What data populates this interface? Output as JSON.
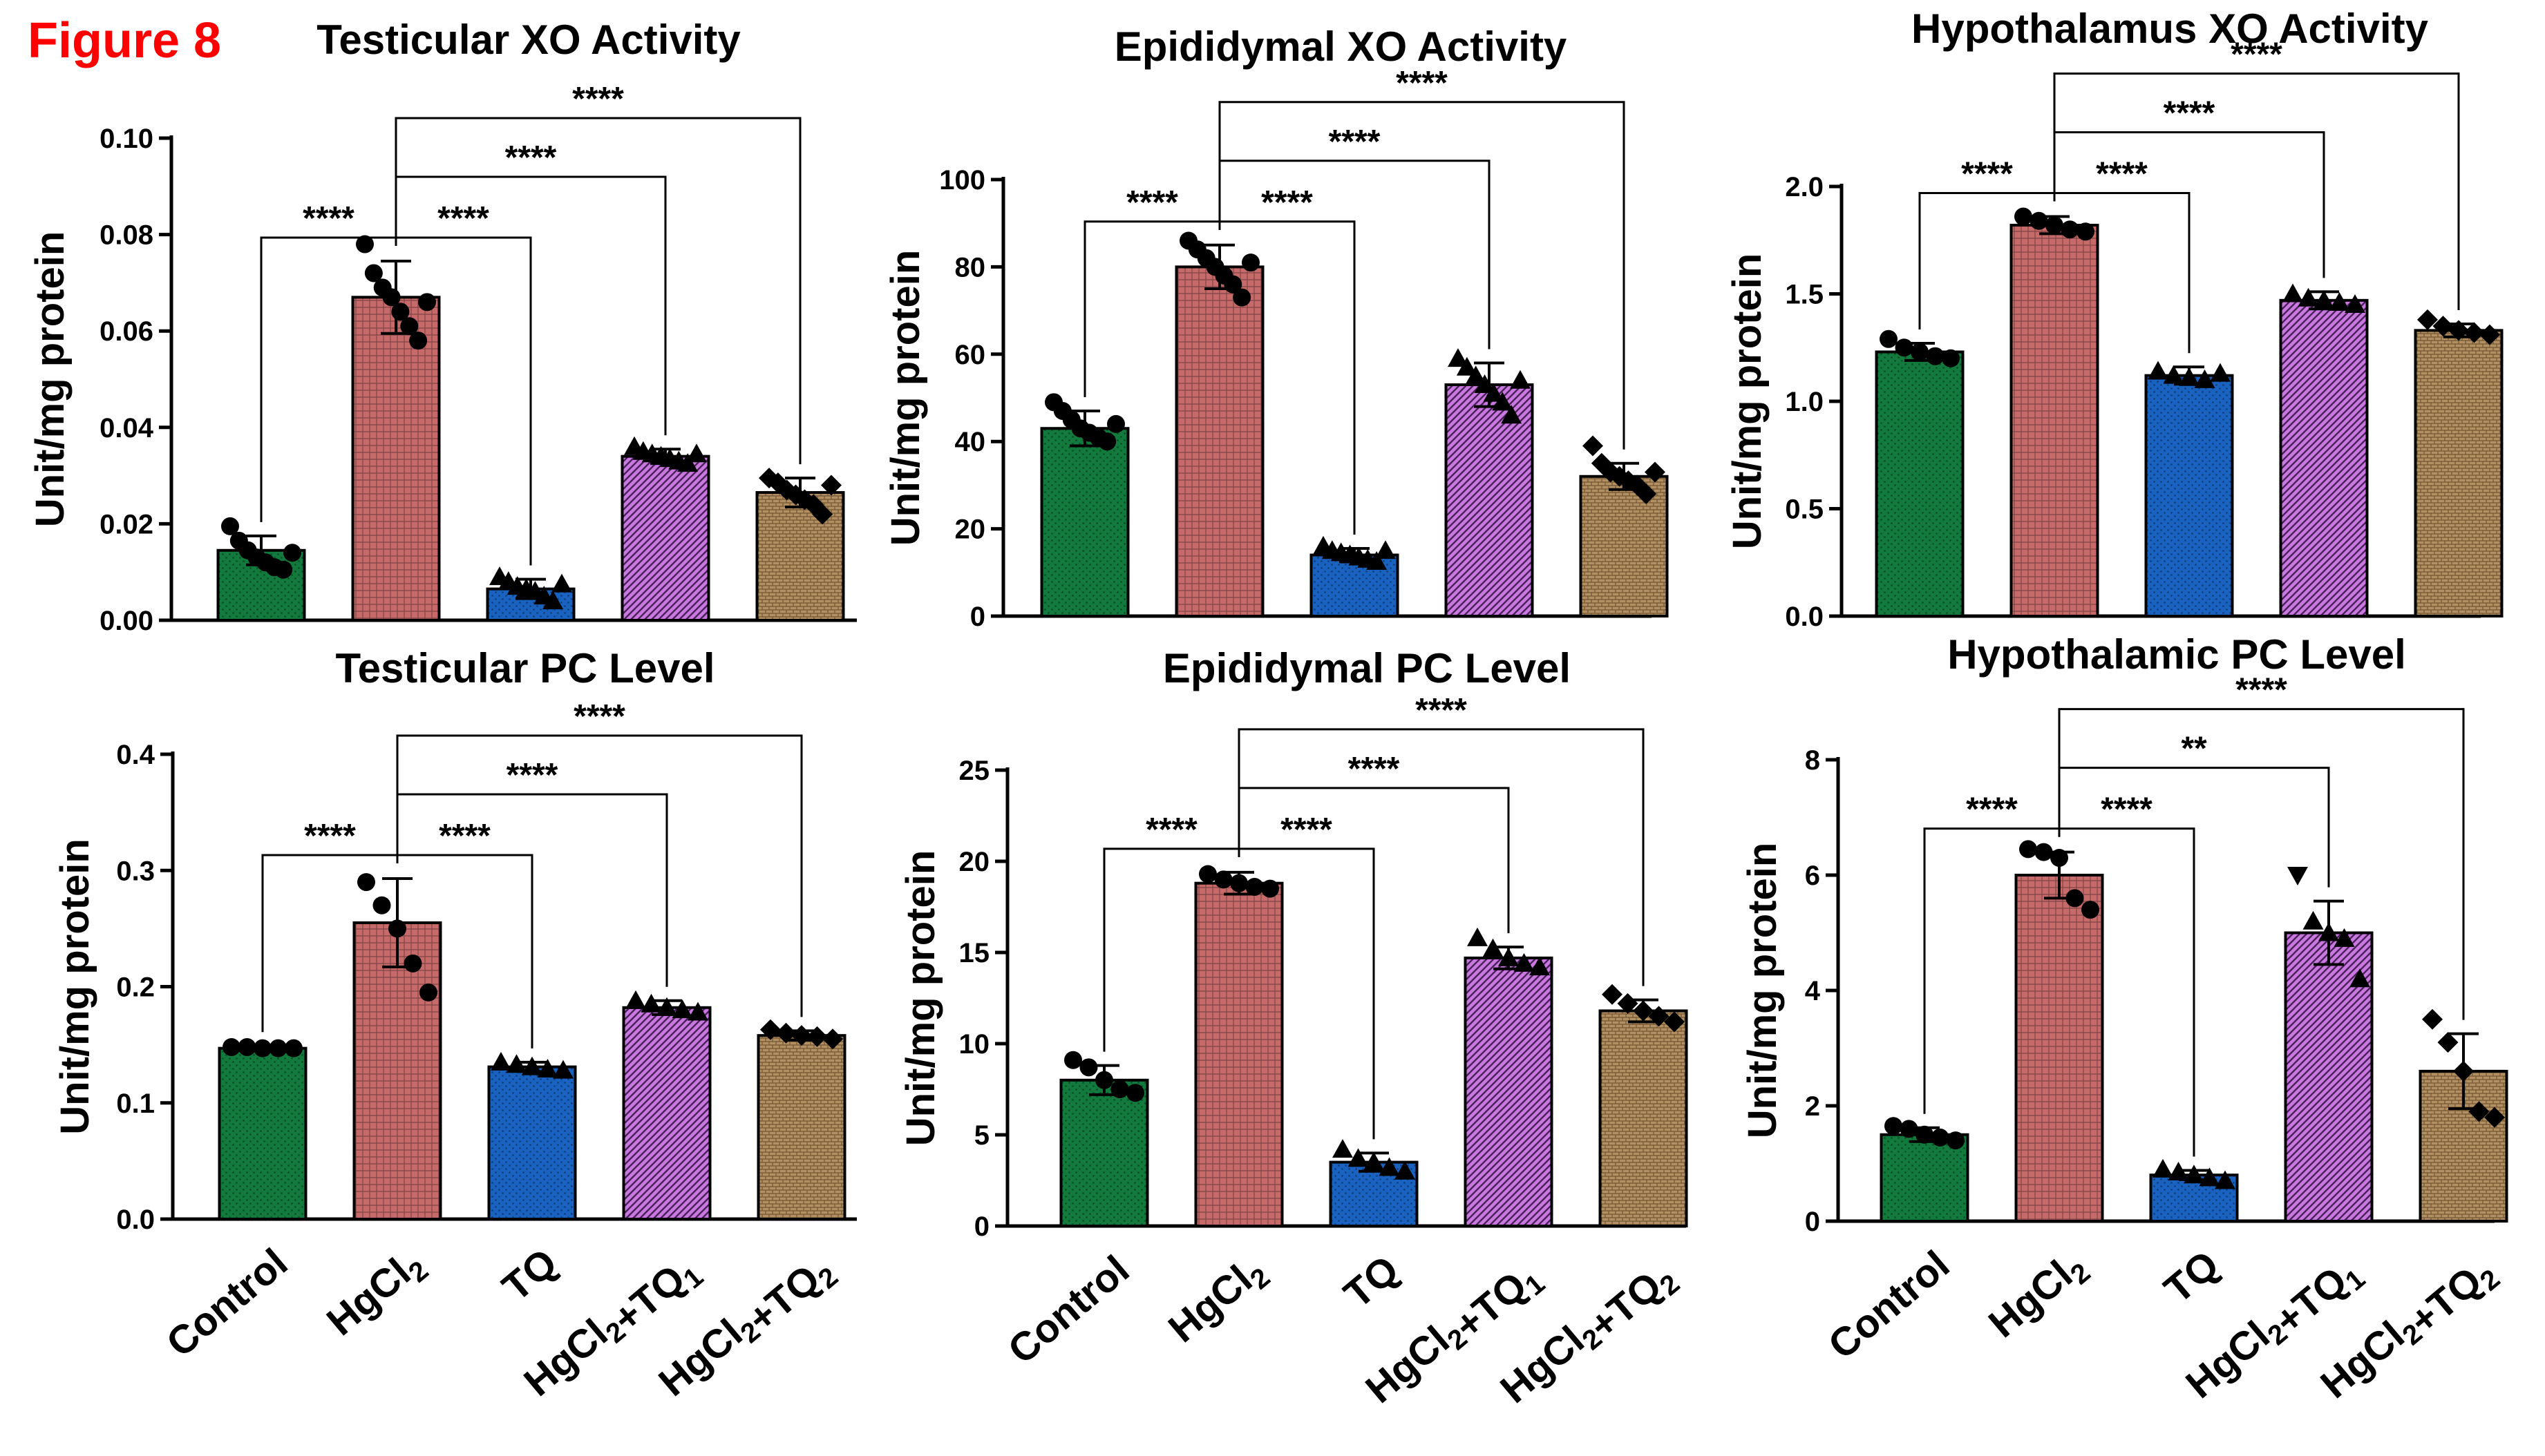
{
  "figure_label": "Figure 8",
  "groups": [
    "Control",
    "HgCl2",
    "TQ",
    "HgCl2+TQ1",
    "HgCl2+TQ2"
  ],
  "colors": {
    "Control": "#127a3c",
    "HgCl2": "#c66a6a",
    "TQ": "#1a62c0",
    "HgCl2+TQ1": "#c978df",
    "HgCl2+TQ2": "#b39063"
  },
  "markers": [
    "circle",
    "circle",
    "triangle",
    "triangle",
    "diamond"
  ],
  "chart_data": [
    {
      "type": "bar",
      "title": "Testicular XO Activity",
      "ylabel": "Unit/mg protein",
      "categories": [
        "Control",
        "HgCl2",
        "TQ",
        "HgCl2+TQ1",
        "HgCl2+TQ2"
      ],
      "values": [
        0.0145,
        0.067,
        0.0065,
        0.034,
        0.0265
      ],
      "sd": [
        0.003,
        0.0075,
        0.002,
        0.0015,
        0.003
      ],
      "points": [
        [
          0.0195,
          0.0165,
          0.0145,
          0.013,
          0.012,
          0.011,
          0.0105,
          0.014
        ],
        [
          0.078,
          0.072,
          0.069,
          0.067,
          0.064,
          0.061,
          0.058,
          0.066
        ],
        [
          0.009,
          0.008,
          0.007,
          0.0065,
          0.006,
          0.005,
          0.004,
          0.0075
        ],
        [
          0.036,
          0.035,
          0.0345,
          0.034,
          0.0335,
          0.033,
          0.0325,
          0.0345
        ],
        [
          0.0295,
          0.0285,
          0.027,
          0.026,
          0.025,
          0.024,
          0.022,
          0.028
        ]
      ],
      "ylim": [
        0,
        0.1
      ],
      "yticks": [
        "0.00",
        "0.02",
        "0.04",
        "0.06",
        "0.08",
        "0.10"
      ],
      "show_xlabels": false,
      "comparisons": [
        {
          "from": 1,
          "to": 0,
          "label": "****"
        },
        {
          "from": 1,
          "to": 2,
          "label": "****"
        },
        {
          "from": 1,
          "to": 3,
          "label": "****"
        },
        {
          "from": 1,
          "to": 4,
          "label": "****"
        }
      ]
    },
    {
      "type": "bar",
      "title": "Epididymal XO Activity",
      "ylabel": "Unit/mg protein",
      "categories": [
        "Control",
        "HgCl2",
        "TQ",
        "HgCl2+TQ1",
        "HgCl2+TQ2"
      ],
      "values": [
        43,
        80,
        14,
        53,
        32
      ],
      "sd": [
        4,
        5,
        1.5,
        5,
        3
      ],
      "points": [
        [
          49,
          47,
          45,
          43,
          42,
          41,
          40,
          44
        ],
        [
          86,
          84,
          82,
          80,
          78,
          76,
          73,
          81
        ],
        [
          16,
          15,
          14.5,
          14,
          13.5,
          13,
          12.5,
          15
        ],
        [
          59,
          57,
          55,
          53,
          51,
          49,
          46,
          54
        ],
        [
          39,
          35,
          33,
          32,
          31,
          30,
          28,
          33
        ]
      ],
      "ylim": [
        0,
        100
      ],
      "yticks": [
        "0",
        "20",
        "40",
        "60",
        "80",
        "100"
      ],
      "show_xlabels": false,
      "comparisons": [
        {
          "from": 1,
          "to": 0,
          "label": "****"
        },
        {
          "from": 1,
          "to": 2,
          "label": "****"
        },
        {
          "from": 1,
          "to": 3,
          "label": "****"
        },
        {
          "from": 1,
          "to": 4,
          "label": "****"
        }
      ]
    },
    {
      "type": "bar",
      "title": "Hypothalamus XO Activity",
      "ylabel": "Unit/mg protein",
      "categories": [
        "Control",
        "HgCl2",
        "TQ",
        "HgCl2+TQ1",
        "HgCl2+TQ2"
      ],
      "values": [
        1.23,
        1.82,
        1.12,
        1.47,
        1.33
      ],
      "sd": [
        0.04,
        0.04,
        0.04,
        0.04,
        0.03
      ],
      "points": [
        [
          1.29,
          1.25,
          1.23,
          1.21,
          1.2
        ],
        [
          1.86,
          1.84,
          1.82,
          1.8,
          1.79
        ],
        [
          1.14,
          1.12,
          1.11,
          1.1,
          1.13
        ],
        [
          1.5,
          1.48,
          1.47,
          1.46,
          1.45
        ],
        [
          1.38,
          1.35,
          1.33,
          1.32,
          1.31
        ]
      ],
      "ylim": [
        0,
        2.0
      ],
      "yticks": [
        "0.0",
        "0.5",
        "1.0",
        "1.5",
        "2.0"
      ],
      "show_xlabels": false,
      "comparisons": [
        {
          "from": 1,
          "to": 0,
          "label": "****"
        },
        {
          "from": 1,
          "to": 2,
          "label": "****"
        },
        {
          "from": 1,
          "to": 3,
          "label": "****"
        },
        {
          "from": 1,
          "to": 4,
          "label": "****"
        }
      ]
    },
    {
      "type": "bar",
      "title": "Testicular PC Level",
      "ylabel": "Unit/mg protein",
      "categories": [
        "Control",
        "HgCl2",
        "TQ",
        "HgCl2+TQ1",
        "HgCl2+TQ2"
      ],
      "values": [
        0.147,
        0.255,
        0.131,
        0.182,
        0.158
      ],
      "sd": [
        0.002,
        0.038,
        0.004,
        0.006,
        0.004
      ],
      "points": [
        [
          0.148,
          0.148,
          0.147,
          0.147,
          0.147
        ],
        [
          0.29,
          0.27,
          0.25,
          0.22,
          0.195
        ],
        [
          0.135,
          0.133,
          0.131,
          0.129,
          0.128
        ],
        [
          0.188,
          0.185,
          0.182,
          0.18,
          0.178
        ],
        [
          0.163,
          0.16,
          0.158,
          0.157,
          0.155
        ]
      ],
      "ylim": [
        0,
        0.4
      ],
      "yticks": [
        "0.0",
        "0.1",
        "0.2",
        "0.3",
        "0.4"
      ],
      "show_xlabels": true,
      "comparisons": [
        {
          "from": 1,
          "to": 0,
          "label": "****"
        },
        {
          "from": 1,
          "to": 2,
          "label": "****"
        },
        {
          "from": 1,
          "to": 3,
          "label": "****"
        },
        {
          "from": 1,
          "to": 4,
          "label": "****"
        }
      ]
    },
    {
      "type": "bar",
      "title": "Epididymal PC Level",
      "ylabel": "Unit/mg protein",
      "categories": [
        "Control",
        "HgCl2",
        "TQ",
        "HgCl2+TQ1",
        "HgCl2+TQ2"
      ],
      "values": [
        8,
        18.8,
        3.5,
        14.7,
        11.8
      ],
      "sd": [
        0.8,
        0.6,
        0.5,
        0.6,
        0.6
      ],
      "points": [
        [
          9.1,
          8.7,
          8.0,
          7.5,
          7.3
        ],
        [
          19.3,
          19.0,
          18.8,
          18.6,
          18.5
        ],
        [
          4.2,
          3.7,
          3.5,
          3.2,
          3.0
        ],
        [
          15.8,
          15.2,
          14.7,
          14.4,
          14.2
        ],
        [
          12.7,
          12.2,
          11.8,
          11.5,
          11.2
        ]
      ],
      "ylim": [
        0,
        25
      ],
      "yticks": [
        "0",
        "5",
        "10",
        "15",
        "20",
        "25"
      ],
      "show_xlabels": true,
      "comparisons": [
        {
          "from": 1,
          "to": 0,
          "label": "****"
        },
        {
          "from": 1,
          "to": 2,
          "label": "****"
        },
        {
          "from": 1,
          "to": 3,
          "label": "****"
        },
        {
          "from": 1,
          "to": 4,
          "label": "****"
        }
      ]
    },
    {
      "type": "bar",
      "title": "Hypothalamic PC Level",
      "ylabel": "Unit/mg protein",
      "categories": [
        "Control",
        "HgCl2",
        "TQ",
        "HgCl2+TQ1",
        "HgCl2+TQ2"
      ],
      "values": [
        1.5,
        6.0,
        0.8,
        5.0,
        2.6
      ],
      "sd": [
        0.12,
        0.4,
        0.08,
        0.55,
        0.65
      ],
      "points": [
        [
          1.65,
          1.6,
          1.5,
          1.45,
          1.4
        ],
        [
          6.45,
          6.4,
          6.3,
          5.6,
          5.4
        ],
        [
          0.9,
          0.85,
          0.8,
          0.75,
          0.7
        ],
        [
          6.0,
          5.2,
          5.0,
          4.9,
          4.2
        ],
        [
          3.5,
          3.1,
          2.6,
          1.9,
          1.8
        ]
      ],
      "ylim": [
        0,
        8
      ],
      "yticks": [
        "0",
        "2",
        "4",
        "6",
        "8"
      ],
      "show_xlabels": true,
      "comparisons": [
        {
          "from": 1,
          "to": 0,
          "label": "****"
        },
        {
          "from": 1,
          "to": 2,
          "label": "****"
        },
        {
          "from": 1,
          "to": 3,
          "label": "**"
        },
        {
          "from": 1,
          "to": 4,
          "label": "****"
        }
      ]
    }
  ]
}
